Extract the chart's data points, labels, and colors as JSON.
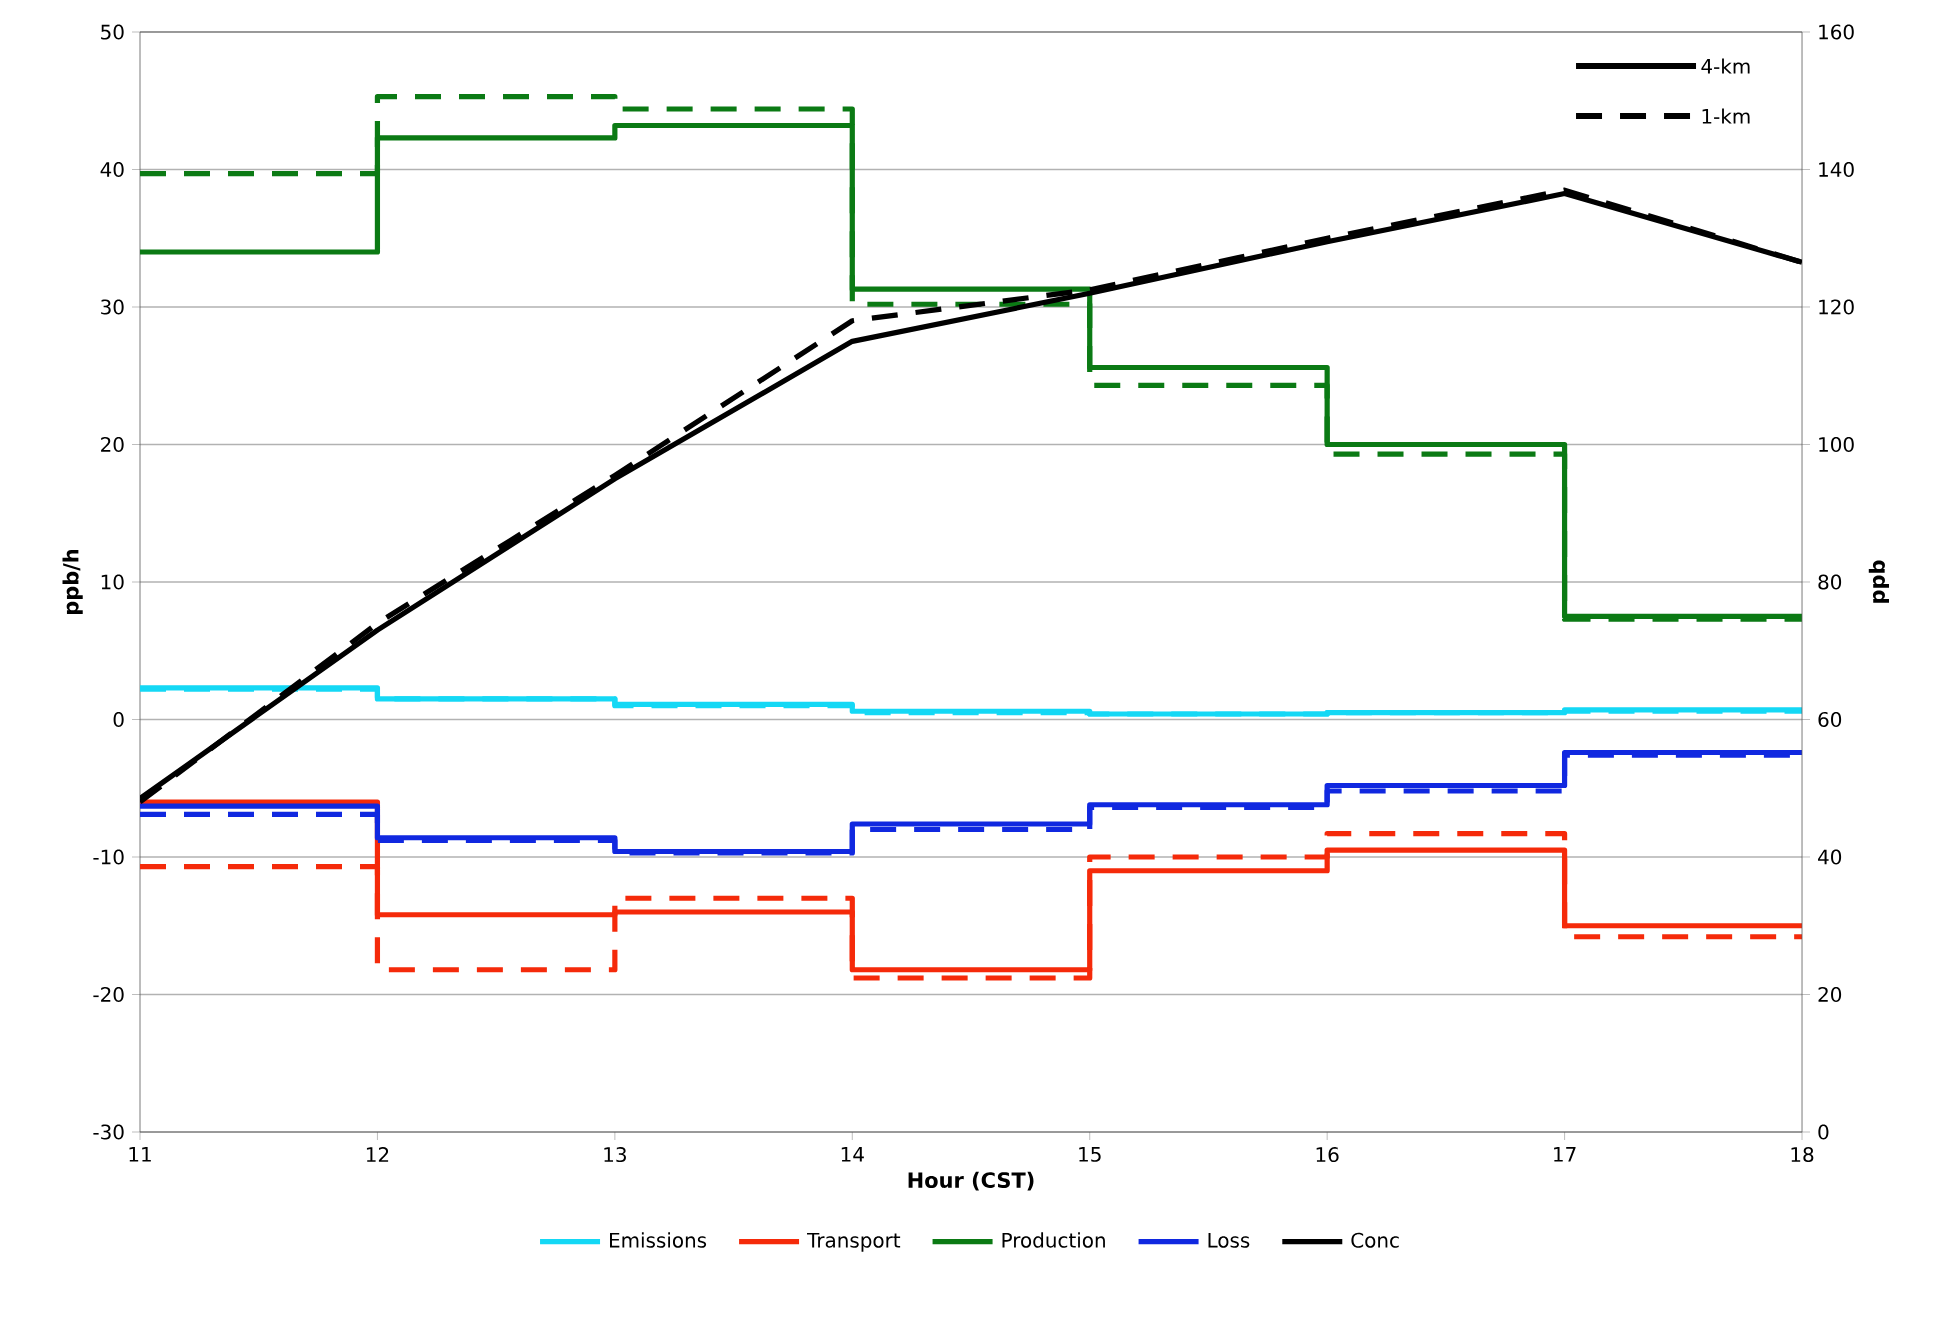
{
  "chart_data": {
    "type": "step",
    "xlabel": "Hour (CST)",
    "ylabel": "ppb/h",
    "y2label": "ppb",
    "x": [
      11,
      12,
      13,
      14,
      15,
      16,
      17,
      18
    ],
    "xlim": [
      11,
      18
    ],
    "xticks": [
      11,
      12,
      13,
      14,
      15,
      16,
      17,
      18
    ],
    "ylim": [
      -30,
      50
    ],
    "yticks": [
      -30,
      -20,
      -10,
      0,
      10,
      20,
      30,
      40,
      50
    ],
    "y2lim": [
      0,
      160
    ],
    "y2ticks": [
      0,
      20,
      40,
      60,
      80,
      100,
      120,
      140,
      160
    ],
    "grid": "y",
    "legend": "bottom",
    "annotations": [
      "4-km",
      "1-km"
    ],
    "series": [
      {
        "name": "Emissions",
        "color": "#14d8f5",
        "line_style": "solid",
        "values": [
          2.3,
          1.5,
          1.1,
          0.6,
          0.4,
          0.5,
          0.7,
          0.7
        ]
      },
      {
        "color": "#14d8f5",
        "line_style": "dashed",
        "values": [
          2.2,
          1.5,
          1.0,
          0.5,
          0.4,
          0.5,
          0.6,
          0.6
        ]
      },
      {
        "name": "Transport",
        "color": "#f52a0a",
        "line_style": "solid",
        "values": [
          -6,
          -14.2,
          -14,
          -18.2,
          -11,
          -9.5,
          -15,
          -15
        ]
      },
      {
        "color": "#f52a0a",
        "line_style": "dashed",
        "values": [
          -10.7,
          -18.2,
          -13,
          -18.8,
          -10,
          -8.3,
          -15.8,
          -15.8
        ]
      },
      {
        "name": "Production",
        "color": "#0b7a14",
        "line_style": "solid",
        "values": [
          34,
          42.3,
          43.2,
          31.3,
          25.6,
          20,
          7.5,
          7.5
        ]
      },
      {
        "color": "#0b7a14",
        "line_style": "dashed",
        "values": [
          39.7,
          45.3,
          44.4,
          30.2,
          24.3,
          19.3,
          7.3,
          7.3
        ]
      },
      {
        "name": "Loss",
        "color": "#1028e0",
        "line_style": "solid",
        "values": [
          -6.3,
          -8.6,
          -9.6,
          -7.6,
          -6.2,
          -4.8,
          -2.4,
          -2.4
        ]
      },
      {
        "color": "#1028e0",
        "line_style": "dashed",
        "values": [
          -6.9,
          -8.8,
          -9.7,
          -8,
          -6.4,
          -5.2,
          -2.6,
          -2.6
        ]
      },
      {
        "name": "Conc",
        "type": "line",
        "axis": "y2",
        "color": "#000000",
        "line_style": "solid",
        "values": [
          48.5,
          73,
          95,
          115,
          122,
          129.5,
          136.5,
          126.5
        ]
      },
      {
        "type": "line",
        "axis": "y2",
        "color": "#000000",
        "line_style": "dashed",
        "values": [
          48,
          74,
          95.5,
          118,
          122.5,
          130,
          137,
          126.5
        ]
      }
    ]
  }
}
